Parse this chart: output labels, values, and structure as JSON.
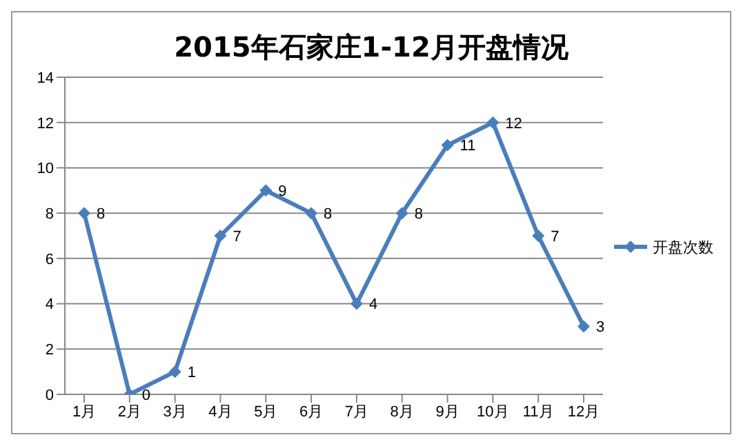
{
  "chart_data": {
    "type": "line",
    "title": "2015年石家庄1-12月开盘情况",
    "categories": [
      "1月",
      "2月",
      "3月",
      "4月",
      "5月",
      "6月",
      "7月",
      "8月",
      "9月",
      "10月",
      "11月",
      "12月"
    ],
    "series": [
      {
        "name": "开盘次数",
        "color": "#4a7ebb",
        "values": [
          8,
          0,
          1,
          7,
          9,
          8,
          4,
          8,
          11,
          12,
          7,
          3
        ]
      }
    ],
    "ylim": [
      0,
      14
    ],
    "yticks": [
      0,
      2,
      4,
      6,
      8,
      10,
      12,
      14
    ],
    "grid": "y",
    "legend": "right",
    "marker": "diamond",
    "line_style": "solid",
    "data_labels": true
  }
}
